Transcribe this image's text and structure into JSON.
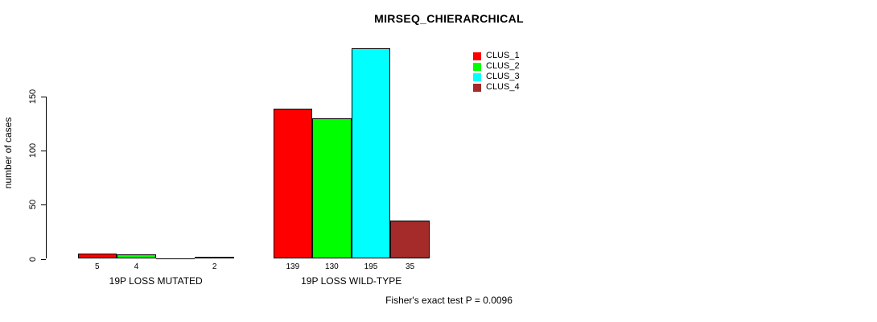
{
  "title": "MIRSEQ_CHIERARCHICAL",
  "chart_data": {
    "type": "bar",
    "title": "MIRSEQ_CHIERARCHICAL",
    "xlabel": "",
    "ylabel": "number of cases",
    "ylim": [
      0,
      150
    ],
    "yticks": [
      0,
      50,
      100,
      150
    ],
    "grid": false,
    "legend_position": "top-right",
    "categories": [
      "19P LOSS MUTATED",
      "19P LOSS WILD-TYPE"
    ],
    "series": [
      {
        "name": "CLUS_1",
        "color": "#ff0000",
        "values": [
          5,
          139
        ]
      },
      {
        "name": "CLUS_2",
        "color": "#00ff00",
        "values": [
          4,
          130
        ]
      },
      {
        "name": "CLUS_3",
        "color": "#00ffff",
        "values": [
          0,
          195
        ]
      },
      {
        "name": "CLUS_4",
        "color": "#a52a2a",
        "values": [
          2,
          35
        ]
      }
    ],
    "bar_value_labels_visible": true,
    "annotation": "Fisher's exact test P = 0.0096"
  },
  "colors": {
    "background": "#ffffff",
    "axis": "#000000",
    "bar_border": "#000000",
    "text": "#000000"
  }
}
